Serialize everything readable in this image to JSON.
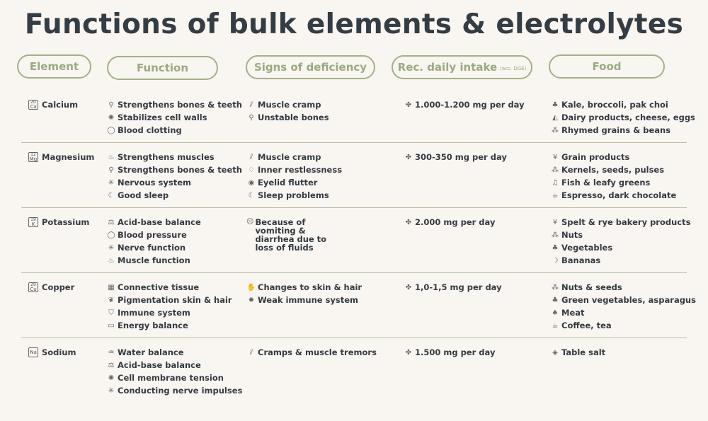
{
  "title": "Functions of bulk elements & electrolytes",
  "headers": {
    "element": "Element",
    "function": "Function",
    "signs": "Signs of deficiency",
    "intake": "Rec. daily intake",
    "intake_note": "(acc. DGE)",
    "food": "Food"
  },
  "colors": {
    "background": "#f9f5f0",
    "accent": "#9aaa80",
    "text": "#333a42"
  },
  "rows": [
    {
      "symbol": "Ca",
      "number": "20",
      "name": "Calcium",
      "functions": [
        {
          "icon": "bone-icon",
          "text": "Strengthens bones & teeth"
        },
        {
          "icon": "cell-icon",
          "text": "Stabilizes cell walls"
        },
        {
          "icon": "drop-icon",
          "text": "Blood clotting"
        }
      ],
      "signs": [
        {
          "icon": "muscle-cramp-icon",
          "text": "Muscle cramp"
        },
        {
          "icon": "bone-icon",
          "text": "Unstable bones"
        }
      ],
      "intake": "1.000-1.200 mg per day",
      "food": [
        {
          "icon": "broccoli-icon",
          "text": "Kale, broccoli, pak choi"
        },
        {
          "icon": "cheese-icon",
          "text": "Dairy products, cheese, eggs"
        },
        {
          "icon": "grain-icon",
          "text": "Rhymed grains & beans"
        }
      ]
    },
    {
      "symbol": "Mg",
      "number": "12",
      "name": "Magnesium",
      "functions": [
        {
          "icon": "muscle-icon",
          "text": "Strengthens muscles"
        },
        {
          "icon": "bone-icon",
          "text": "Strengthens bones & teeth"
        },
        {
          "icon": "nerve-icon",
          "text": "Nervous system"
        },
        {
          "icon": "sleep-icon",
          "text": "Good sleep"
        }
      ],
      "signs": [
        {
          "icon": "muscle-cramp-icon",
          "text": "Muscle cramp"
        },
        {
          "icon": "restless-icon",
          "text": "Inner restlessness"
        },
        {
          "icon": "eye-icon",
          "text": "Eyelid flutter"
        },
        {
          "icon": "sleep-icon",
          "text": "Sleep problems"
        }
      ],
      "intake": "300-350 mg per day",
      "food": [
        {
          "icon": "wheat-icon",
          "text": "Grain products"
        },
        {
          "icon": "seeds-icon",
          "text": "Kernels, seeds, pulses"
        },
        {
          "icon": "fish-icon",
          "text": "Fish & leafy greens"
        },
        {
          "icon": "coffee-icon",
          "text": "Espresso, dark chocolate"
        }
      ]
    },
    {
      "symbol": "K",
      "number": "19",
      "name": "Potassium",
      "functions": [
        {
          "icon": "scale-icon",
          "text": "Acid-base balance"
        },
        {
          "icon": "drop-icon",
          "text": "Blood pressure"
        },
        {
          "icon": "nerve-icon",
          "text": "Nerve function"
        },
        {
          "icon": "muscle-icon",
          "text": "Muscle function"
        }
      ],
      "signs": [
        {
          "icon": "sick-face-icon",
          "text": "Because of vomiting & diarrhea due to loss of fluids"
        }
      ],
      "intake": "2.000 mg per day",
      "food": [
        {
          "icon": "wheat-icon",
          "text": "Spelt & rye bakery products"
        },
        {
          "icon": "nuts-icon",
          "text": "Nuts"
        },
        {
          "icon": "broccoli-icon",
          "text": "Vegetables"
        },
        {
          "icon": "banana-icon",
          "text": "Bananas"
        }
      ]
    },
    {
      "symbol": "Cu",
      "number": "29",
      "name": "Copper",
      "functions": [
        {
          "icon": "tissue-icon",
          "text": "Connective tissue"
        },
        {
          "icon": "hair-icon",
          "text": "Pigmentation skin & hair"
        },
        {
          "icon": "shield-icon",
          "text": "Immune system"
        },
        {
          "icon": "battery-icon",
          "text": "Energy balance"
        }
      ],
      "signs": [
        {
          "icon": "hand-icon",
          "text": "Changes to skin & hair"
        },
        {
          "icon": "virus-icon",
          "text": "Weak immune system"
        }
      ],
      "intake": "1,0-1,5 mg per day",
      "food": [
        {
          "icon": "nuts-icon",
          "text": "Nuts & seeds"
        },
        {
          "icon": "broccoli-icon",
          "text": "Green vegetables, asparagus"
        },
        {
          "icon": "meat-icon",
          "text": "Meat"
        },
        {
          "icon": "coffee-icon",
          "text": "Coffee, tea"
        }
      ]
    },
    {
      "symbol": "Na",
      "number": "",
      "name": "Sodium",
      "functions": [
        {
          "icon": "water-icon",
          "text": "Water balance"
        },
        {
          "icon": "scale-icon",
          "text": "Acid-base balance"
        },
        {
          "icon": "cell-icon",
          "text": "Cell membrane tension"
        },
        {
          "icon": "nerve-icon",
          "text": "Conducting nerve impulses"
        }
      ],
      "signs": [
        {
          "icon": "muscle-cramp-icon",
          "text": "Cramps & muscle tremors"
        }
      ],
      "intake": "1.500 mg per day",
      "food": [
        {
          "icon": "salt-icon",
          "text": "Table salt"
        }
      ]
    }
  ]
}
